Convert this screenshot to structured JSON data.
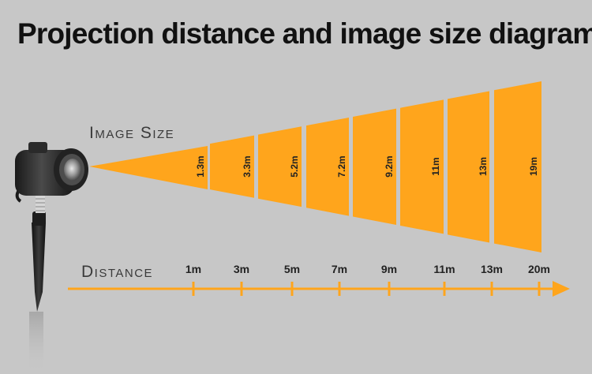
{
  "title": "Projection distance and image size diagram",
  "labels": {
    "image_size": "Image Size",
    "distance": "Distance"
  },
  "colors": {
    "background": "#c7c7c7",
    "accent": "#ffa51c",
    "text": "#111111"
  },
  "image_sizes": [
    "1.3m",
    "3.3m",
    "5.2m",
    "7.2m",
    "9.2m",
    "11m",
    "13m",
    "19m"
  ],
  "distances": [
    "1m",
    "3m",
    "5m",
    "7m",
    "9m",
    "11m",
    "13m",
    "20m"
  ],
  "icons": {
    "projector": "projector-on-stake-icon"
  }
}
